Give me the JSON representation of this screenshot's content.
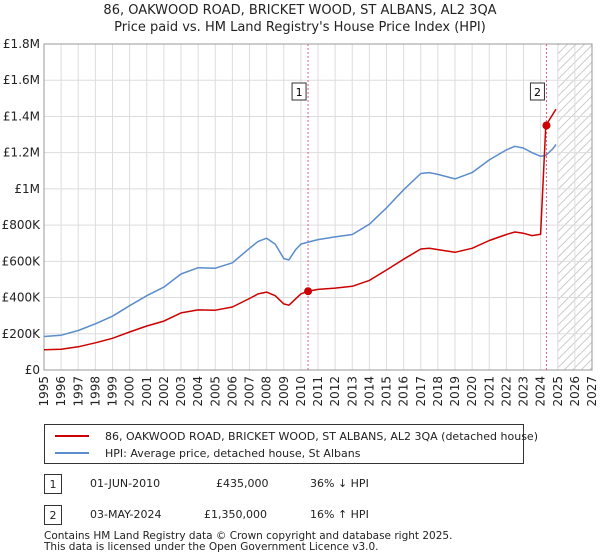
{
  "title": "86, OAKWOOD ROAD, BRICKET WOOD, ST ALBANS, AL2 3QA",
  "subtitle": "Price paid vs. HM Land Registry's House Price Index (HPI)",
  "colors": {
    "property": "#cc0000",
    "hpi": "#5b8ccc",
    "marker_line": "#e0607a",
    "grid": "#dddddd"
  },
  "chart_data": {
    "type": "line",
    "xlim": [
      1995,
      2027
    ],
    "ylim": [
      0,
      1800000
    ],
    "x_ticks": [
      "1995",
      "1996",
      "1997",
      "1998",
      "1999",
      "2000",
      "2001",
      "2002",
      "2003",
      "2004",
      "2005",
      "2006",
      "2007",
      "2008",
      "2009",
      "2010",
      "2011",
      "2012",
      "2013",
      "2014",
      "2015",
      "2016",
      "2017",
      "2018",
      "2019",
      "2020",
      "2021",
      "2022",
      "2023",
      "2024",
      "2025",
      "2026",
      "2027"
    ],
    "y_ticks": [
      {
        "value": 0,
        "label": "£0"
      },
      {
        "value": 200000,
        "label": "£200K"
      },
      {
        "value": 400000,
        "label": "£400K"
      },
      {
        "value": 600000,
        "label": "£600K"
      },
      {
        "value": 800000,
        "label": "£800K"
      },
      {
        "value": 1000000,
        "label": "£1M"
      },
      {
        "value": 1200000,
        "label": "£1.2M"
      },
      {
        "value": 1400000,
        "label": "£1.4M"
      },
      {
        "value": 1600000,
        "label": "£1.6M"
      },
      {
        "value": 1800000,
        "label": "£1.8M"
      }
    ],
    "forecast_from": 2025.0,
    "series": [
      {
        "name": "86, OAKWOOD ROAD, BRICKET WOOD, ST ALBANS, AL2 3QA (detached house)",
        "points": [
          [
            1995.0,
            112000
          ],
          [
            1996.0,
            115000
          ],
          [
            1997.0,
            128000
          ],
          [
            1998.0,
            150000
          ],
          [
            1999.0,
            175000
          ],
          [
            2000.0,
            210000
          ],
          [
            2001.0,
            243000
          ],
          [
            2002.0,
            270000
          ],
          [
            2003.0,
            315000
          ],
          [
            2004.0,
            332000
          ],
          [
            2005.0,
            330000
          ],
          [
            2006.0,
            348000
          ],
          [
            2007.0,
            395000
          ],
          [
            2007.5,
            420000
          ],
          [
            2008.0,
            430000
          ],
          [
            2008.5,
            410000
          ],
          [
            2009.0,
            365000
          ],
          [
            2009.3,
            358000
          ],
          [
            2009.7,
            393000
          ],
          [
            2010.0,
            420000
          ],
          [
            2010.42,
            435000
          ],
          [
            2011.0,
            445000
          ],
          [
            2012.0,
            452000
          ],
          [
            2013.0,
            462000
          ],
          [
            2014.0,
            495000
          ],
          [
            2015.0,
            552000
          ],
          [
            2016.0,
            612000
          ],
          [
            2017.0,
            668000
          ],
          [
            2017.5,
            672000
          ],
          [
            2018.0,
            665000
          ],
          [
            2019.0,
            650000
          ],
          [
            2020.0,
            672000
          ],
          [
            2021.0,
            715000
          ],
          [
            2022.0,
            748000
          ],
          [
            2022.5,
            762000
          ],
          [
            2023.0,
            755000
          ],
          [
            2023.5,
            742000
          ],
          [
            2024.0,
            750000
          ],
          [
            2024.3,
            1350000
          ],
          [
            2024.7,
            1410000
          ],
          [
            2024.9,
            1440000
          ]
        ]
      },
      {
        "name": "HPI: Average price, detached house, St Albans",
        "points": [
          [
            1995.0,
            185000
          ],
          [
            1996.0,
            192000
          ],
          [
            1997.0,
            218000
          ],
          [
            1998.0,
            255000
          ],
          [
            1999.0,
            297000
          ],
          [
            2000.0,
            355000
          ],
          [
            2001.0,
            410000
          ],
          [
            2002.0,
            458000
          ],
          [
            2003.0,
            530000
          ],
          [
            2004.0,
            565000
          ],
          [
            2005.0,
            562000
          ],
          [
            2006.0,
            592000
          ],
          [
            2007.0,
            672000
          ],
          [
            2007.5,
            710000
          ],
          [
            2008.0,
            728000
          ],
          [
            2008.5,
            695000
          ],
          [
            2009.0,
            615000
          ],
          [
            2009.3,
            608000
          ],
          [
            2009.7,
            665000
          ],
          [
            2010.0,
            695000
          ],
          [
            2010.42,
            706000
          ],
          [
            2011.0,
            720000
          ],
          [
            2012.0,
            735000
          ],
          [
            2013.0,
            748000
          ],
          [
            2014.0,
            805000
          ],
          [
            2015.0,
            895000
          ],
          [
            2016.0,
            995000
          ],
          [
            2017.0,
            1085000
          ],
          [
            2017.5,
            1090000
          ],
          [
            2018.0,
            1080000
          ],
          [
            2019.0,
            1055000
          ],
          [
            2020.0,
            1090000
          ],
          [
            2021.0,
            1160000
          ],
          [
            2022.0,
            1215000
          ],
          [
            2022.5,
            1235000
          ],
          [
            2023.0,
            1225000
          ],
          [
            2023.5,
            1200000
          ],
          [
            2024.0,
            1180000
          ],
          [
            2024.3,
            1185000
          ],
          [
            2024.7,
            1220000
          ],
          [
            2024.9,
            1245000
          ]
        ]
      }
    ],
    "annotations": [
      {
        "label": "1",
        "x": 2010.42,
        "y": 435000
      },
      {
        "label": "2",
        "x": 2024.34,
        "y": 1350000
      }
    ]
  },
  "legend": {
    "property_label": "86, OAKWOOD ROAD, BRICKET WOOD, ST ALBANS, AL2 3QA (detached house)",
    "hpi_label": "HPI: Average price, detached house, St Albans"
  },
  "transactions": [
    {
      "num": "1",
      "date": "01-JUN-2010",
      "price": "£435,000",
      "hpi": "36% ↓ HPI"
    },
    {
      "num": "2",
      "date": "03-MAY-2024",
      "price": "£1,350,000",
      "hpi": "16% ↑ HPI"
    }
  ],
  "footer": {
    "line1": "Contains HM Land Registry data © Crown copyright and database right 2025.",
    "line2": "This data is licensed under the Open Government Licence v3.0."
  }
}
